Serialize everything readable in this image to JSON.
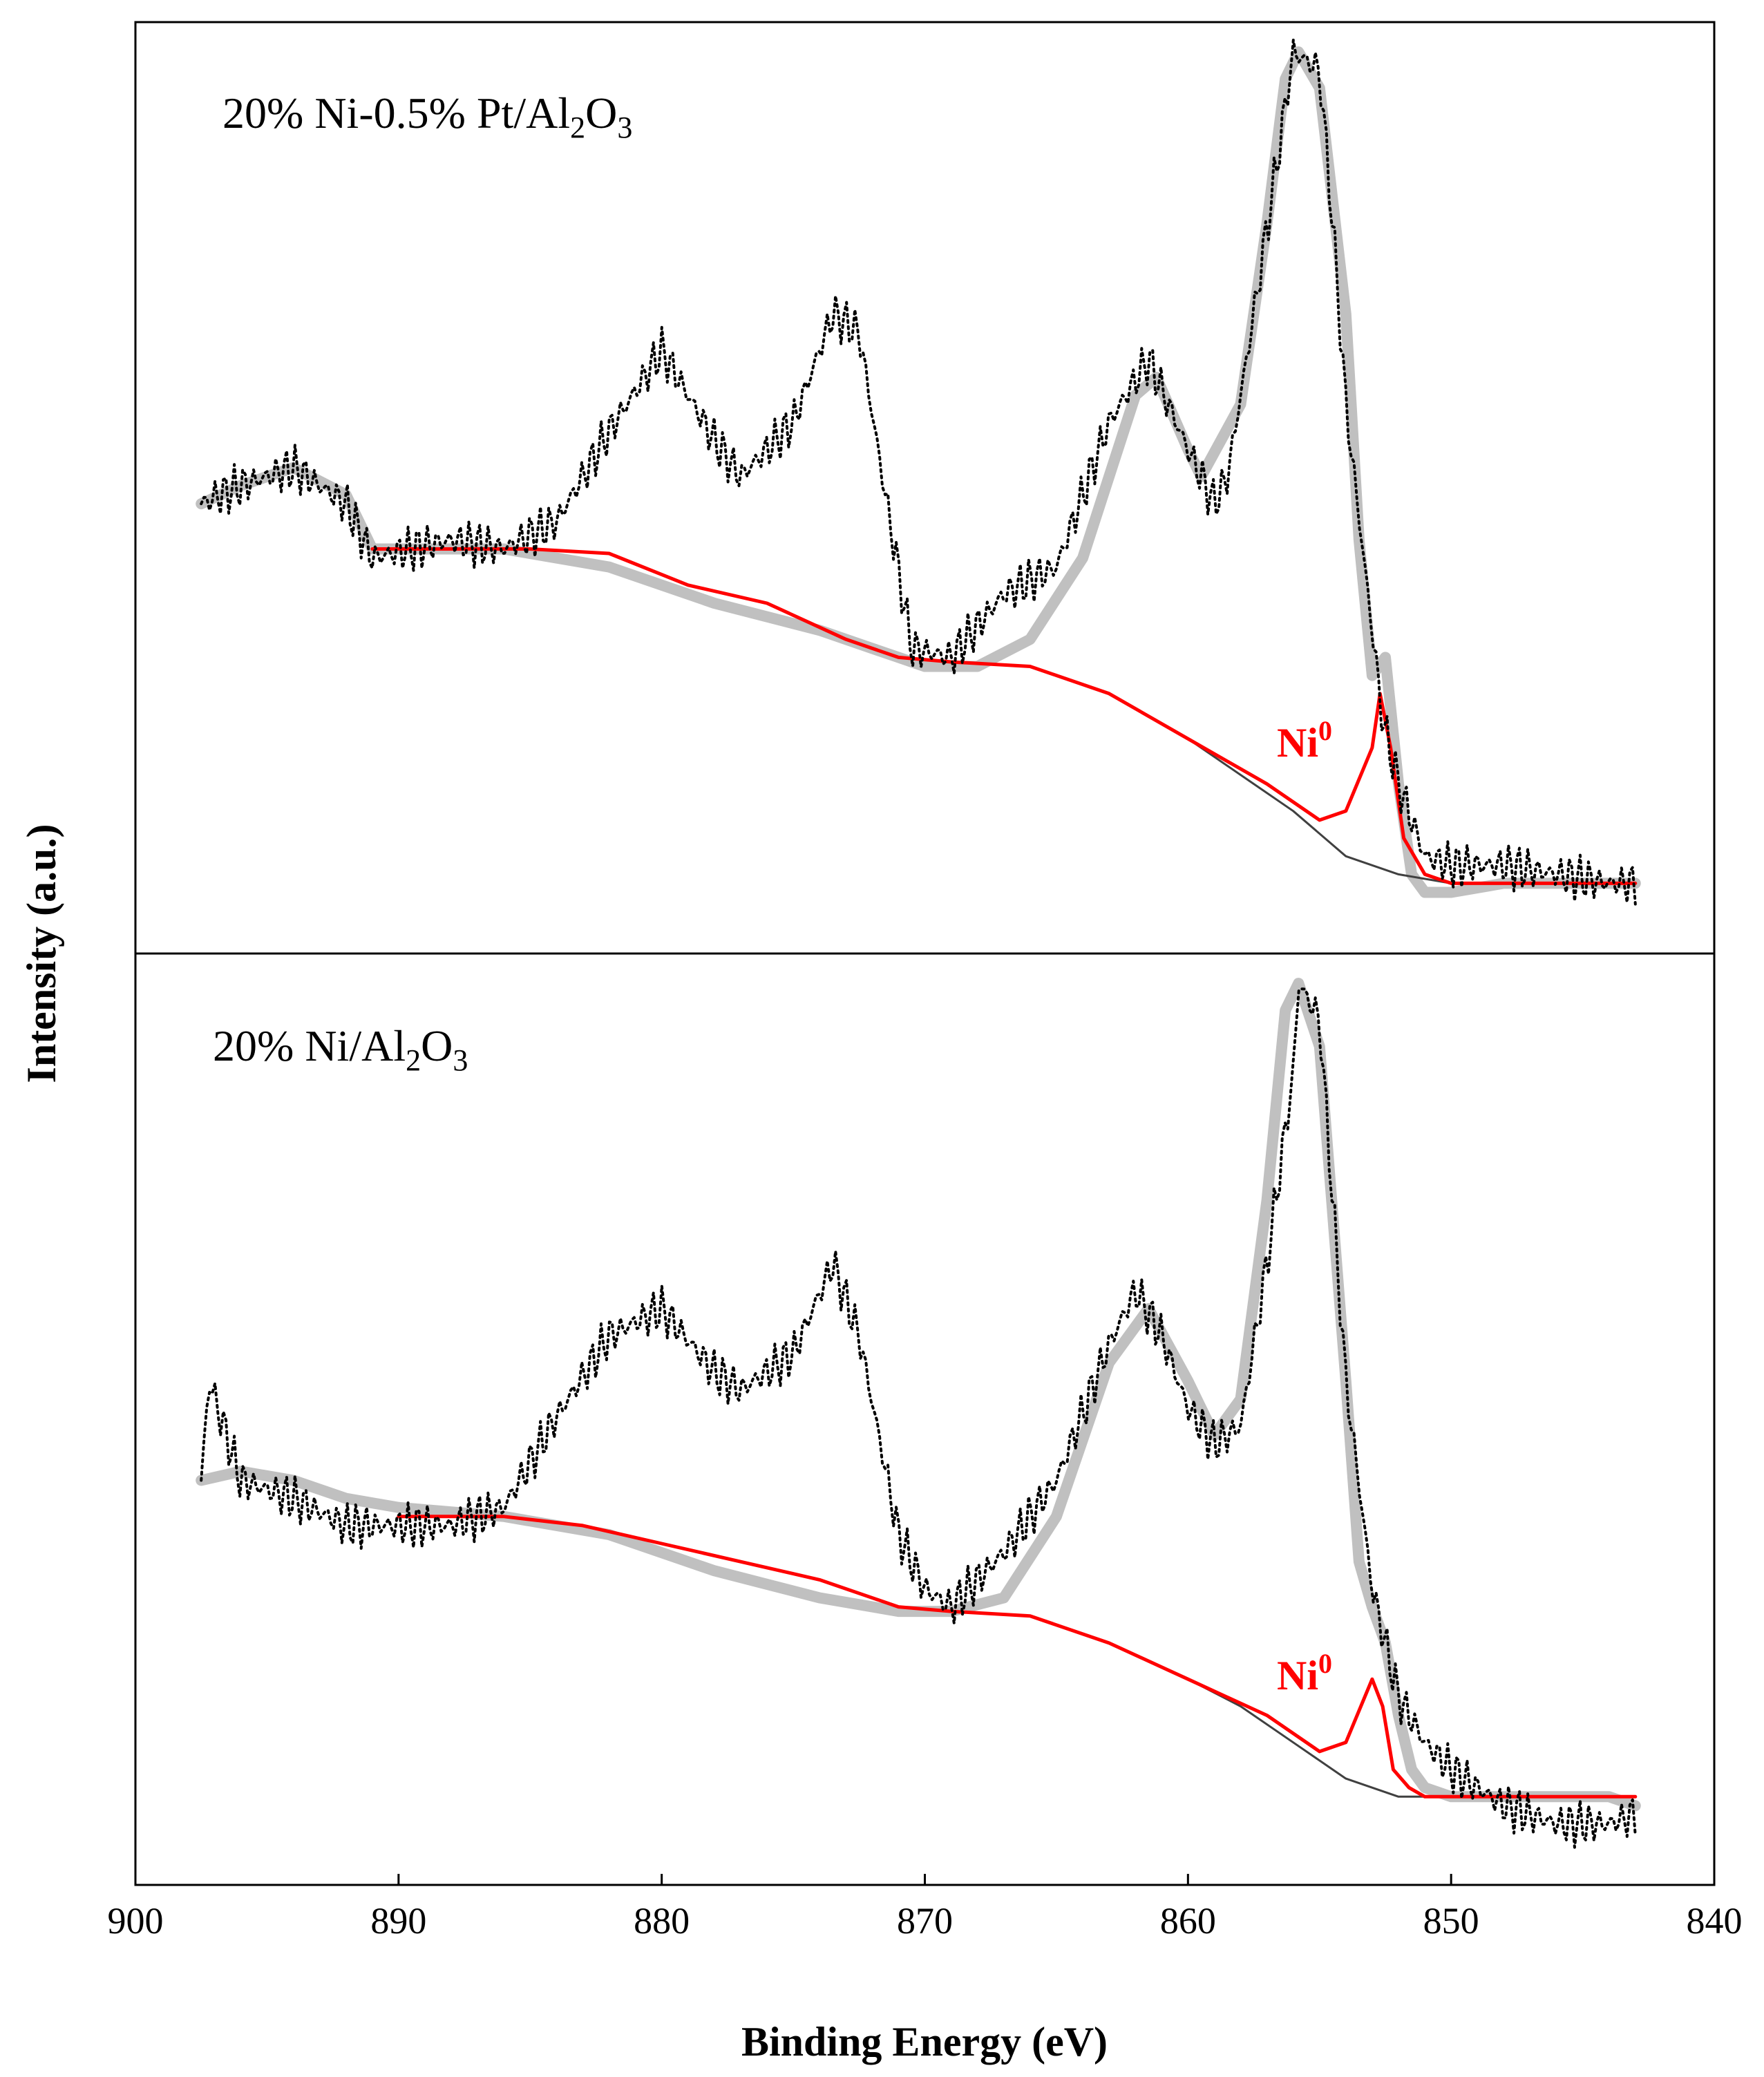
{
  "chart_data": {
    "type": "line",
    "xlabel": "Binding Energy (eV)",
    "ylabel": "Intensity (a.u.)",
    "xlim": [
      900,
      840
    ],
    "xticks": [
      "900",
      "890",
      "880",
      "870",
      "860",
      "850",
      "840"
    ],
    "colors": {
      "raw": "#000000",
      "envelope": "#c0c0c0",
      "ni0": "#ff0000",
      "background": "#404040"
    },
    "panels": [
      {
        "id": "top",
        "title": {
          "prefix": "20% Ni-0.5% Pt/Al",
          "s1": "2",
          "mid": "O",
          "s2": "3"
        },
        "annotation": {
          "text": "Ni",
          "sup": "0",
          "x": 855.5
        },
        "ylim": [
          0,
          100
        ],
        "series": [
          {
            "name": "raw",
            "x": [
              897.5,
              896,
              894,
              892,
              891,
              888,
              886,
              884,
              882,
              880,
              878,
              877,
              875,
              873.5,
              872.5,
              871.5,
              870.5,
              869,
              867,
              865,
              863,
              861.5,
              860,
              859,
              858.5,
              857.5,
              856.5,
              856,
              855,
              854.5,
              854,
              853,
              852.6,
              852,
              851,
              850,
              848,
              846,
              844,
              843
            ],
            "y": [
              49,
              51,
              53,
              49,
              43,
              45,
              44,
              47,
              57,
              66,
              56,
              52,
              58,
              70,
              68,
              50,
              33,
              32,
              39,
              42,
              58,
              65,
              55,
              49,
              52,
              70,
              89,
              99,
              97,
              80,
              60,
              35,
              25,
              18,
              10,
              9,
              9,
              8,
              7,
              7
            ]
          },
          {
            "name": "envelope",
            "x": [
              897.5,
              896,
              894,
              892,
              891,
              889,
              886,
              882,
              878,
              874,
              872,
              871,
              870,
              868,
              866,
              864,
              862,
              861.2,
              860,
              859.5,
              858,
              857,
              856.3,
              855.8,
              855,
              854,
              853.5,
              853,
              852.5,
              852,
              851.5,
              851,
              850,
              848,
              846,
              844,
              843
            ],
            "y": [
              49,
              51,
              53,
              50,
              44,
              44,
              44,
              42,
              38,
              35,
              33,
              32,
              31,
              31,
              34,
              43,
              61,
              63,
              55,
              52,
              60,
              80,
              96,
              99,
              95,
              70,
              45,
              30,
              32,
              18,
              8,
              6,
              6,
              7,
              7,
              7,
              7
            ]
          },
          {
            "name": "Ni0",
            "x": [
              891,
              888,
              885,
              882,
              879,
              876,
              873,
              871,
              869,
              866,
              863,
              860,
              857,
              855,
              854,
              853,
              852.7,
              852.3,
              851.8,
              851,
              850,
              848,
              845,
              843
            ],
            "y": [
              44,
              44,
              44,
              43.5,
              40,
              38,
              34,
              32,
              31.5,
              31,
              28,
              23,
              18,
              14,
              15,
              22,
              28,
              22,
              12,
              8,
              7,
              7,
              7,
              7
            ]
          },
          {
            "name": "background",
            "x": [
              891,
              888,
              885,
              882,
              879,
              876,
              873,
              871,
              869,
              866,
              863,
              860,
              858,
              856,
              854,
              852,
              850,
              848,
              845,
              843
            ],
            "y": [
              44,
              44,
              44,
              43.5,
              40,
              38,
              34,
              32,
              31.5,
              31,
              28,
              23,
              19,
              15,
              10,
              8,
              7,
              7,
              7,
              7
            ]
          }
        ]
      },
      {
        "id": "bottom",
        "title": {
          "prefix": "20% Ni/Al",
          "s1": "2",
          "mid": "O",
          "s2": "3"
        },
        "annotation": {
          "text": "Ni",
          "sup": "0",
          "x": 855.5
        },
        "ylim": [
          0,
          100
        ],
        "series": [
          {
            "name": "raw",
            "x": [
              897.5,
              897.2,
              896,
              894,
              892,
              890,
              888,
              886,
              884,
              882,
              880,
              878,
              877,
              875,
              873.5,
              872.5,
              871,
              870,
              869,
              867,
              865,
              863,
              862,
              861,
              860,
              859,
              858,
              857,
              856,
              855.8,
              855,
              854,
              853,
              852,
              851,
              850,
              848,
              846,
              844,
              843
            ],
            "y": [
              44,
              55,
              44,
              42,
              39,
              39,
              39,
              41,
              51,
              60,
              63,
              56,
              54,
              58,
              68,
              60,
              38,
              32,
              30,
              36,
              44,
              59,
              65,
              60,
              52,
              48,
              50,
              68,
              89,
              99,
              95,
              55,
              32,
              20,
              15,
              12,
              8,
              6,
              6,
              7
            ]
          },
          {
            "name": "envelope",
            "x": [
              897.5,
              896,
              894,
              892,
              890,
              886,
              882,
              878,
              874,
              871,
              869,
              867,
              865,
              863,
              861.5,
              860,
              859,
              858,
              857,
              856.3,
              855.8,
              855,
              854,
              853.5,
              853,
              852.5,
              852,
              851.5,
              851,
              850,
              848,
              846,
              844,
              843
            ],
            "y": [
              44,
              45,
              44,
              42,
              41,
              40,
              38,
              34,
              31,
              29.5,
              29.5,
              31,
              40,
              57,
              63,
              55,
              49,
              53,
              75,
              96,
              99,
              92,
              55,
              35,
              30,
              26,
              18,
              12,
              10,
              9,
              9,
              9,
              9,
              8
            ]
          },
          {
            "name": "Ni0",
            "x": [
              890,
              886,
              883,
              880,
              877,
              874,
              871,
              869,
              866,
              863,
              860,
              857,
              855,
              854,
              853,
              852.6,
              852.2,
              851.6,
              851,
              850,
              848,
              845,
              843
            ],
            "y": [
              40,
              40,
              39,
              37,
              35,
              33,
              30,
              29.5,
              29,
              26,
              22,
              18,
              14,
              15,
              22,
              19,
              12,
              10,
              9,
              9,
              9,
              9,
              9
            ]
          },
          {
            "name": "background",
            "x": [
              890,
              886,
              883,
              880,
              877,
              874,
              871,
              869,
              866,
              863,
              860,
              858,
              856,
              854,
              852,
              850,
              848,
              845,
              843
            ],
            "y": [
              40,
              40,
              39,
              37,
              35,
              33,
              30,
              29.5,
              29,
              26,
              22,
              19,
              15,
              11,
              9,
              9,
              9,
              9,
              9
            ]
          }
        ]
      }
    ]
  }
}
